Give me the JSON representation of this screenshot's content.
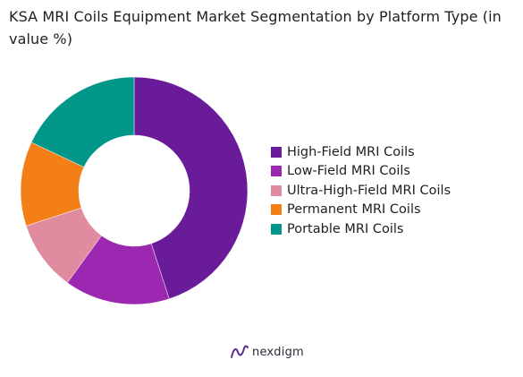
{
  "chart_data": {
    "type": "pie",
    "title": "KSA MRI Coils Equipment Market Segmentation by Platform Type (in value %)",
    "categories": [
      "High-Field MRI Coils",
      "Low-Field MRI Coils",
      "Ultra-High-Field MRI Coils",
      "Permanent MRI Coils",
      "Portable MRI Coils"
    ],
    "values": [
      45,
      15,
      10,
      12,
      18
    ],
    "colors": [
      "#6a1b9a",
      "#9c27b0",
      "#e08ba0",
      "#f57f17",
      "#009688"
    ],
    "donut": true,
    "start_angle": "top",
    "direction": "clockwise",
    "legend": "right"
  },
  "branding": {
    "logo_text": "nexdigm",
    "icon": "nexdigm-logo-icon"
  }
}
